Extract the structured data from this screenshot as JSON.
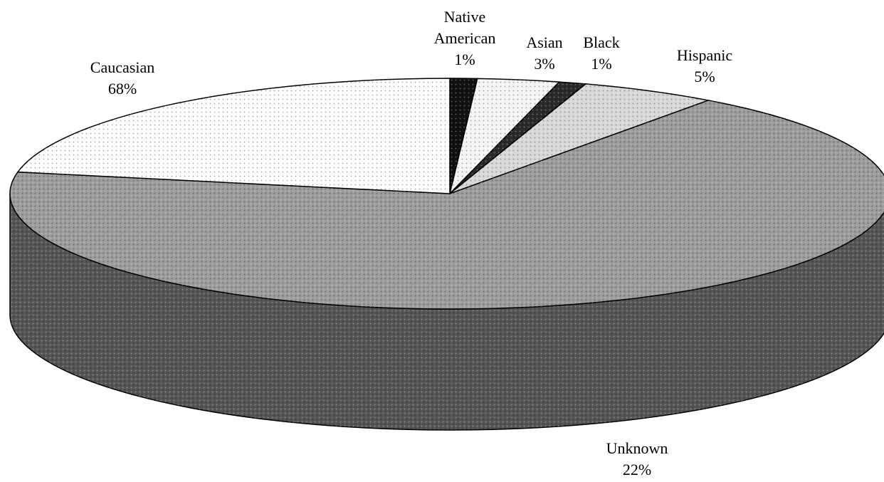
{
  "chart_data": {
    "type": "pie",
    "categories": [
      "Native American",
      "Asian",
      "Black",
      "Hispanic",
      "Caucasian",
      "Unknown"
    ],
    "values": [
      1,
      3,
      1,
      5,
      68,
      22
    ],
    "value_labels": [
      "1%",
      "3%",
      "1%",
      "5%",
      "68%",
      "22%"
    ],
    "colors": [
      "#111111",
      "#f4f4f4",
      "#2a2a2a",
      "#d8d8d8",
      "#9c9c9c",
      "#ffffff"
    ]
  }
}
